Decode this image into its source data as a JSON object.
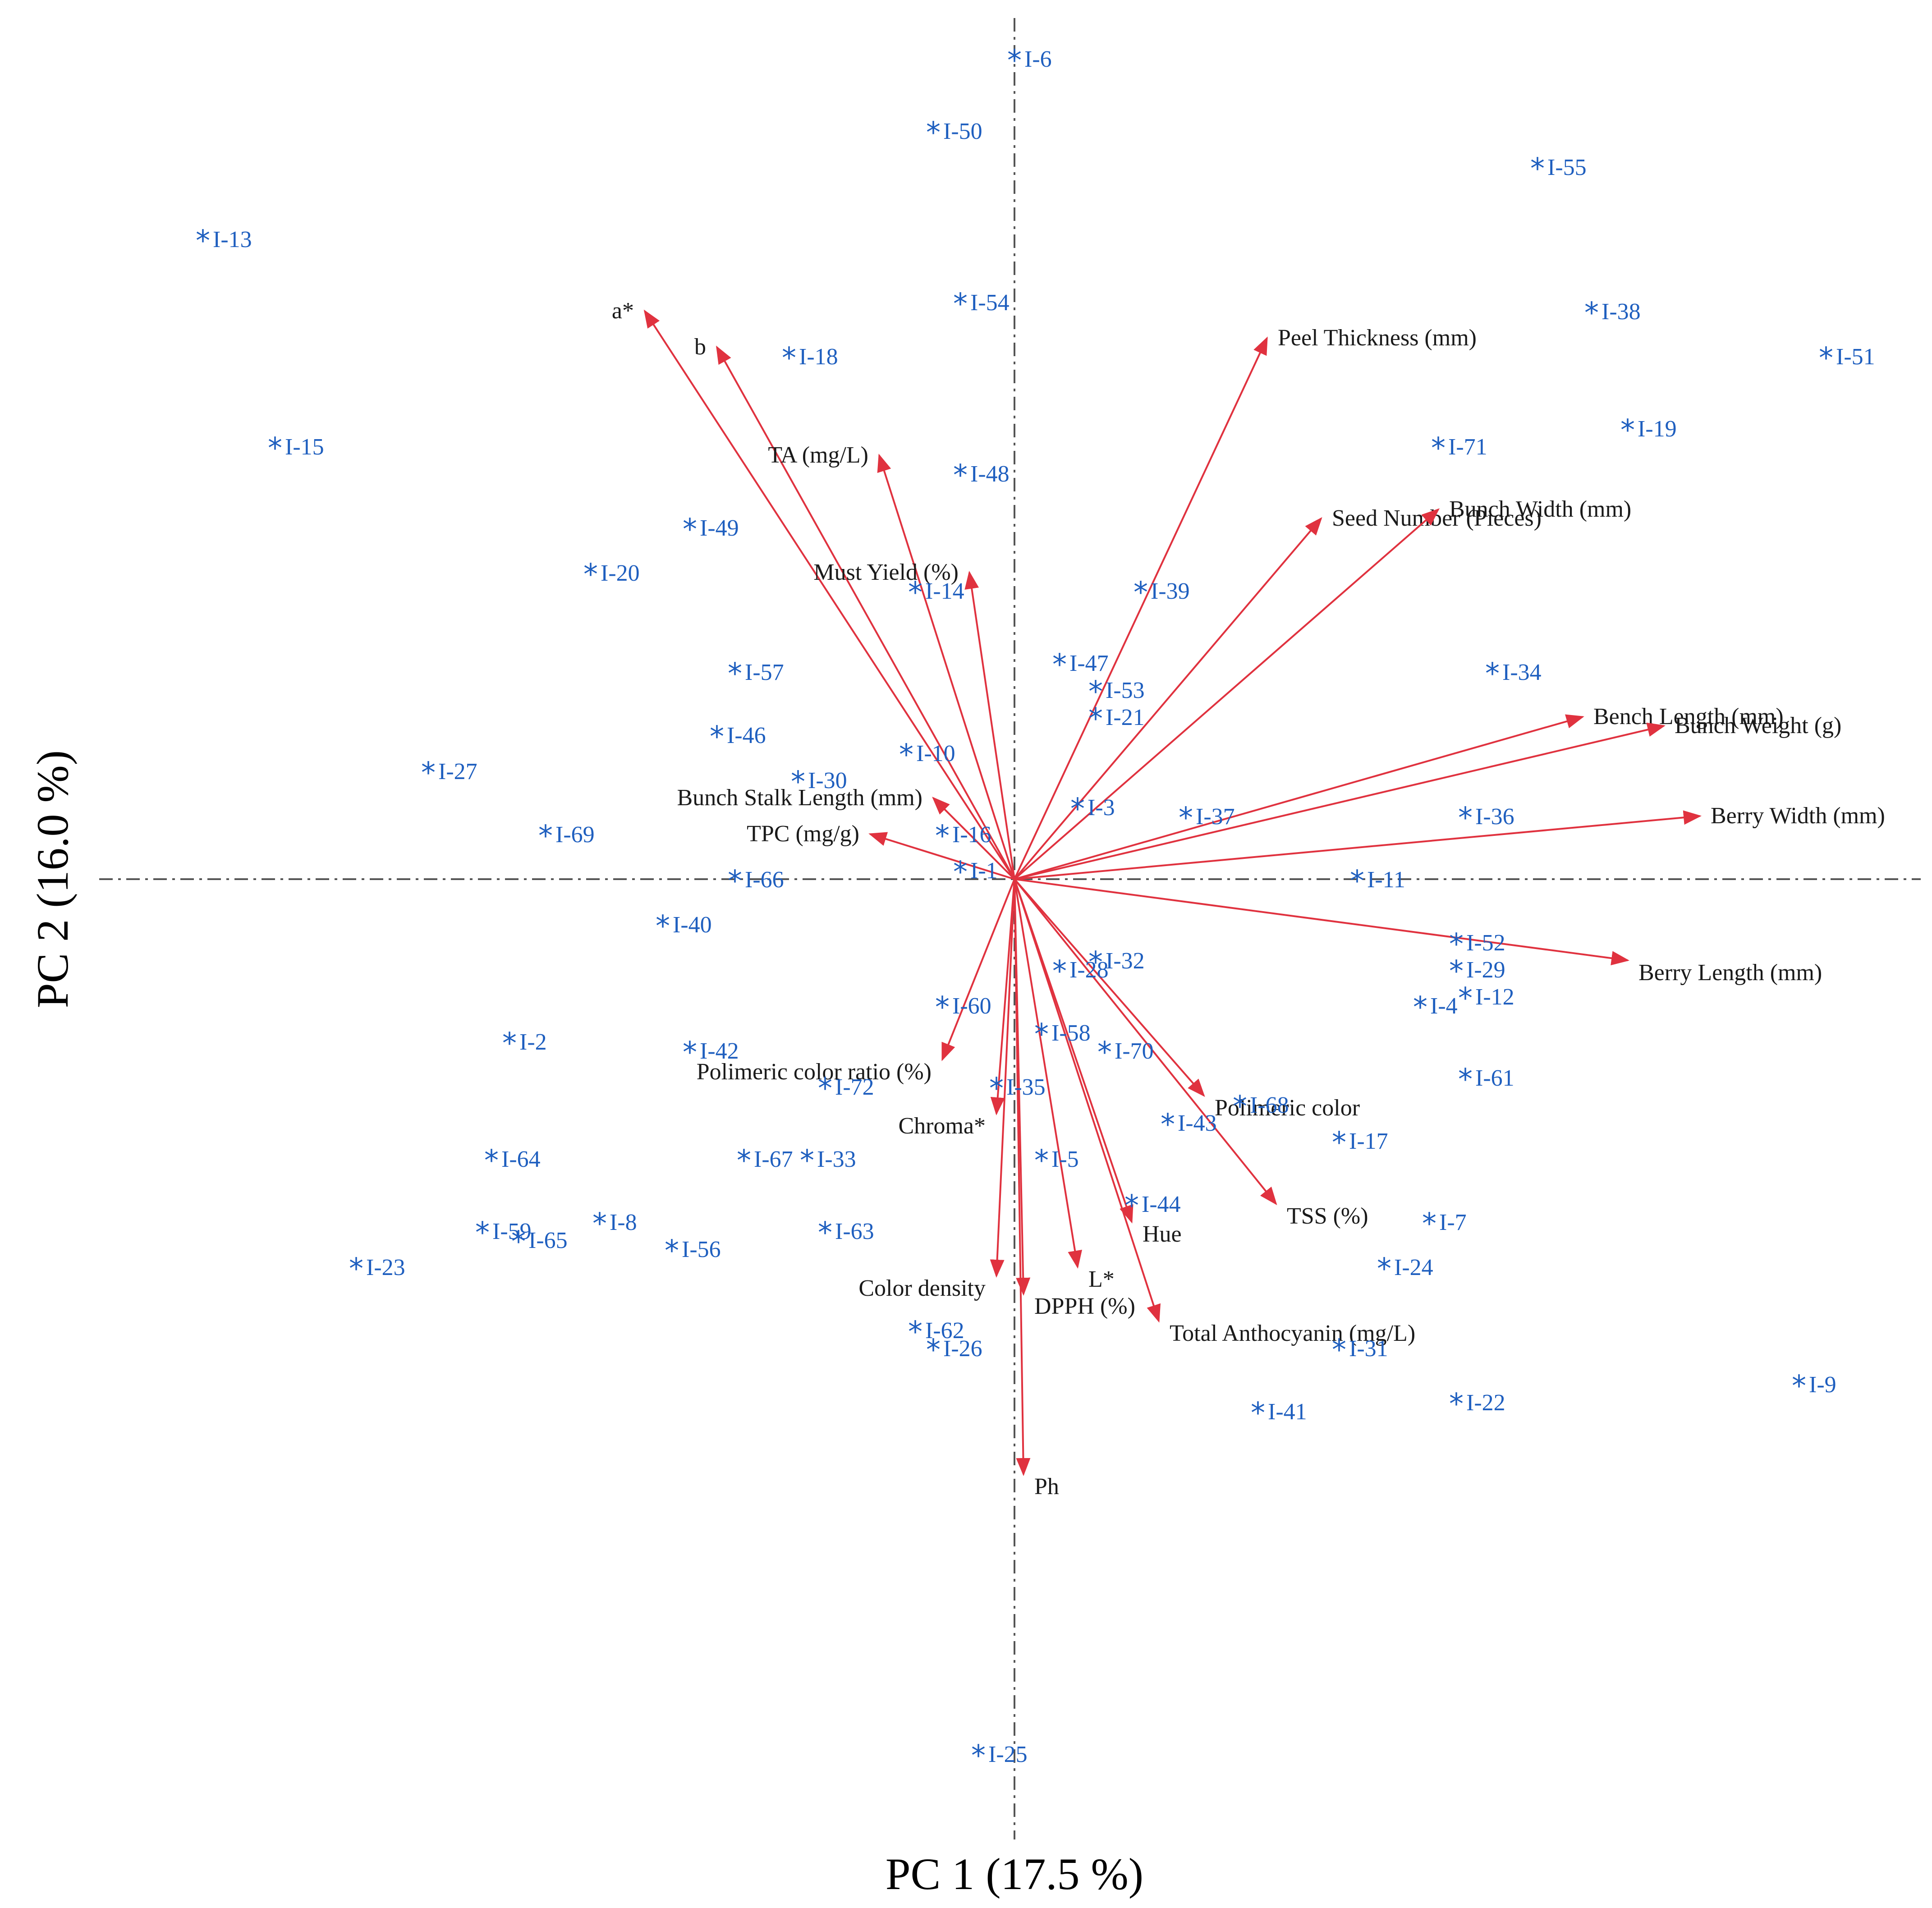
{
  "chart_data": {
    "type": "scatter",
    "subtype": "pca-biplot",
    "xlabel": "PC 1  (17.5 %)",
    "ylabel": "PC 2  (16.0 %)",
    "xlim": [
      -100,
      100
    ],
    "ylim": [
      -100,
      100
    ],
    "grid": false,
    "reference_lines": "dash-dot lines through the origin (x = 0 and y = 0)",
    "colors": {
      "samples": "#1f5fbf",
      "vectors": "#e0323f",
      "var_text": "#1a1a1a",
      "reference": "#555555"
    },
    "marker": "asterisk",
    "samples": [
      {
        "label": "I-6",
        "x": 0,
        "y": 91
      },
      {
        "label": "I-50",
        "x": -9,
        "y": 83
      },
      {
        "label": "I-55",
        "x": 58,
        "y": 79
      },
      {
        "label": "I-13",
        "x": -90,
        "y": 71
      },
      {
        "label": "I-54",
        "x": -6,
        "y": 64
      },
      {
        "label": "I-38",
        "x": 64,
        "y": 63
      },
      {
        "label": "I-51",
        "x": 90,
        "y": 58
      },
      {
        "label": "I-18",
        "x": -25,
        "y": 58
      },
      {
        "label": "I-15",
        "x": -82,
        "y": 48
      },
      {
        "label": "I-71",
        "x": 47,
        "y": 48
      },
      {
        "label": "I-19",
        "x": 68,
        "y": 50
      },
      {
        "label": "I-48",
        "x": -6,
        "y": 45
      },
      {
        "label": "I-49",
        "x": -36,
        "y": 39
      },
      {
        "label": "I-20",
        "x": -47,
        "y": 34
      },
      {
        "label": "I-14",
        "x": -11,
        "y": 32
      },
      {
        "label": "I-39",
        "x": 14,
        "y": 32
      },
      {
        "label": "I-47",
        "x": 5,
        "y": 24
      },
      {
        "label": "I-57",
        "x": -31,
        "y": 23
      },
      {
        "label": "I-34",
        "x": 53,
        "y": 23
      },
      {
        "label": "I-53",
        "x": 9,
        "y": 21
      },
      {
        "label": "I-21",
        "x": 9,
        "y": 18
      },
      {
        "label": "I-46",
        "x": -33,
        "y": 16
      },
      {
        "label": "I-10",
        "x": -12,
        "y": 14
      },
      {
        "label": "I-30",
        "x": -24,
        "y": 11
      },
      {
        "label": "I-27",
        "x": -65,
        "y": 12
      },
      {
        "label": "I-3",
        "x": 7,
        "y": 8
      },
      {
        "label": "I-37",
        "x": 19,
        "y": 7
      },
      {
        "label": "I-36",
        "x": 50,
        "y": 7
      },
      {
        "label": "I-69",
        "x": -52,
        "y": 5
      },
      {
        "label": "I-16",
        "x": -8,
        "y": 5
      },
      {
        "label": "I-1",
        "x": -6,
        "y": 1
      },
      {
        "label": "I-66",
        "x": -31,
        "y": 0
      },
      {
        "label": "I-11",
        "x": 38,
        "y": 0
      },
      {
        "label": "I-40",
        "x": -39,
        "y": -5
      },
      {
        "label": "I-52",
        "x": 49,
        "y": -7
      },
      {
        "label": "I-29",
        "x": 49,
        "y": -10
      },
      {
        "label": "I-32",
        "x": 9,
        "y": -9
      },
      {
        "label": "I-28",
        "x": 5,
        "y": -10
      },
      {
        "label": "I-4",
        "x": 45,
        "y": -14
      },
      {
        "label": "I-12",
        "x": 50,
        "y": -13
      },
      {
        "label": "I-60",
        "x": -8,
        "y": -14
      },
      {
        "label": "I-58",
        "x": 3,
        "y": -17
      },
      {
        "label": "I-2",
        "x": -56,
        "y": -18
      },
      {
        "label": "I-42",
        "x": -36,
        "y": -19
      },
      {
        "label": "I-70",
        "x": 10,
        "y": -19
      },
      {
        "label": "I-61",
        "x": 50,
        "y": -22
      },
      {
        "label": "I-72",
        "x": -21,
        "y": -23
      },
      {
        "label": "I-35",
        "x": -2,
        "y": -23
      },
      {
        "label": "I-68",
        "x": 25,
        "y": -25
      },
      {
        "label": "I-43",
        "x": 17,
        "y": -27
      },
      {
        "label": "I-17",
        "x": 36,
        "y": -29
      },
      {
        "label": "I-64",
        "x": -58,
        "y": -31
      },
      {
        "label": "I-67",
        "x": -30,
        "y": -31
      },
      {
        "label": "I-33",
        "x": -23,
        "y": -31
      },
      {
        "label": "I-5",
        "x": 3,
        "y": -31
      },
      {
        "label": "I-44",
        "x": 13,
        "y": -36
      },
      {
        "label": "I-7",
        "x": 46,
        "y": -38
      },
      {
        "label": "I-8",
        "x": -46,
        "y": -38
      },
      {
        "label": "I-63",
        "x": -21,
        "y": -39
      },
      {
        "label": "I-59",
        "x": -59,
        "y": -39
      },
      {
        "label": "I-65",
        "x": -55,
        "y": -40
      },
      {
        "label": "I-56",
        "x": -38,
        "y": -41
      },
      {
        "label": "I-23",
        "x": -73,
        "y": -43
      },
      {
        "label": "I-24",
        "x": 41,
        "y": -43
      },
      {
        "label": "I-62",
        "x": -11,
        "y": -50
      },
      {
        "label": "I-26",
        "x": -9,
        "y": -52
      },
      {
        "label": "I-31",
        "x": 36,
        "y": -52
      },
      {
        "label": "I-9",
        "x": 87,
        "y": -56
      },
      {
        "label": "I-22",
        "x": 49,
        "y": -58
      },
      {
        "label": "I-41",
        "x": 27,
        "y": -59
      },
      {
        "label": "I-25",
        "x": -4,
        "y": -97
      }
    ],
    "loadings": [
      {
        "label": "a*",
        "x": -41,
        "y": 63
      },
      {
        "label": "b",
        "x": -33,
        "y": 59
      },
      {
        "label": "Peel Thickness (mm)",
        "x": 28,
        "y": 60
      },
      {
        "label": "TA (mg/L)",
        "x": -15,
        "y": 47
      },
      {
        "label": "Seed Number (Pieces)",
        "x": 34,
        "y": 40
      },
      {
        "label": "Bunch Width (mm)",
        "x": 47,
        "y": 41
      },
      {
        "label": "Must Yield (%)",
        "x": -5,
        "y": 34
      },
      {
        "label": "Bench Length (mm)",
        "x": 63,
        "y": 18
      },
      {
        "label": "Bunch Weight (g)",
        "x": 72,
        "y": 17
      },
      {
        "label": "Berry Width (mm)",
        "x": 76,
        "y": 7
      },
      {
        "label": "Bunch Stalk Length (mm)",
        "x": -9,
        "y": 9
      },
      {
        "label": "TPC (mg/g)",
        "x": -16,
        "y": 5
      },
      {
        "label": "Berry Length (mm)",
        "x": 68,
        "y": -9
      },
      {
        "label": "Polimeric color ratio (%)",
        "x": -8,
        "y": -20
      },
      {
        "label": "Polimeric color",
        "x": 21,
        "y": -24
      },
      {
        "label": "Chroma*",
        "x": -2,
        "y": -26
      },
      {
        "label": "TSS (%)",
        "x": 29,
        "y": -36
      },
      {
        "label": "Hue",
        "x": 13,
        "y": -38
      },
      {
        "label": "Color density",
        "x": -2,
        "y": -44
      },
      {
        "label": "L*",
        "x": 7,
        "y": -43
      },
      {
        "label": "DPPH (%)",
        "x": 1,
        "y": -46
      },
      {
        "label": "Total Anthocyanin (mg/L)",
        "x": 16,
        "y": -49
      },
      {
        "label": "Ph",
        "x": 1,
        "y": -66
      }
    ]
  }
}
